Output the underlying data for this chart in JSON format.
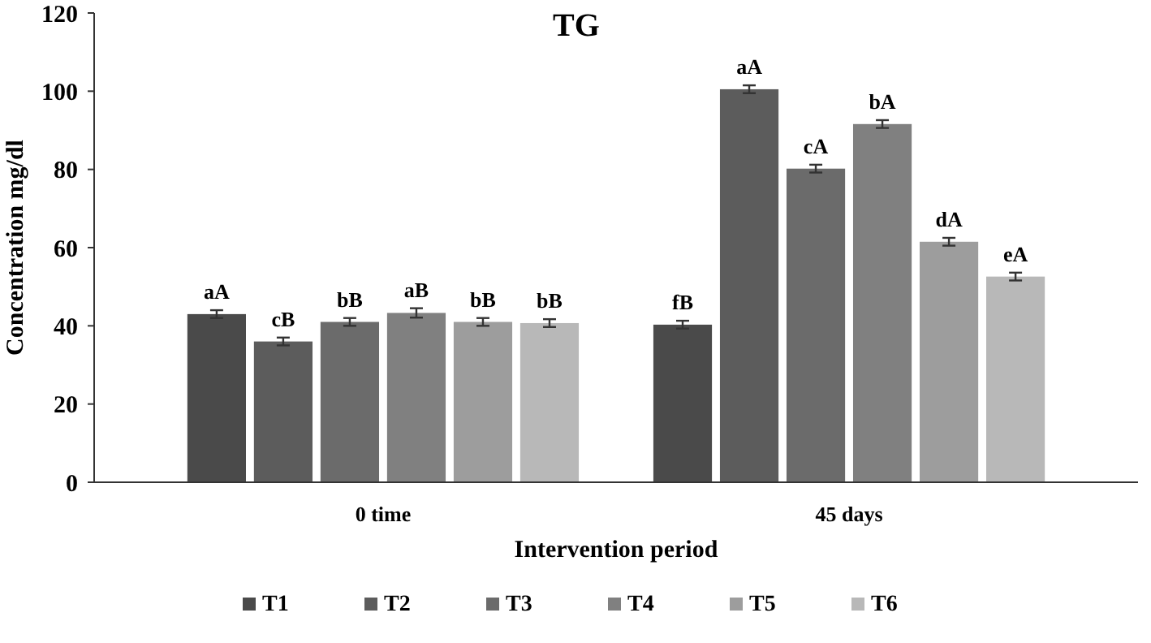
{
  "chart_data": {
    "type": "bar",
    "title": "TG",
    "xlabel": "Intervention period",
    "ylabel": "Concentration mg/dl",
    "categories": [
      "0 time",
      "45 days"
    ],
    "series": [
      {
        "name": "T1",
        "color": "#4a4a4a",
        "values": [
          43,
          40.3
        ],
        "errors": [
          1,
          1
        ],
        "value_labels": [
          "aA",
          "fB"
        ]
      },
      {
        "name": "T2",
        "color": "#5c5c5c",
        "values": [
          36,
          100.5
        ],
        "errors": [
          1,
          1
        ],
        "value_labels": [
          "cB",
          "aA"
        ]
      },
      {
        "name": "T3",
        "color": "#6b6b6b",
        "values": [
          41,
          80.2
        ],
        "errors": [
          1,
          1
        ],
        "value_labels": [
          "bB",
          "cA"
        ]
      },
      {
        "name": "T4",
        "color": "#808080",
        "values": [
          43.3,
          91.6
        ],
        "errors": [
          1.2,
          1
        ],
        "value_labels": [
          "aB",
          "bA"
        ]
      },
      {
        "name": "T5",
        "color": "#9d9d9d",
        "values": [
          41,
          61.5
        ],
        "errors": [
          1,
          1
        ],
        "value_labels": [
          "bB",
          "dA"
        ]
      },
      {
        "name": "T6",
        "color": "#b8b8b8",
        "values": [
          40.7,
          52.6
        ],
        "errors": [
          1,
          1
        ],
        "value_labels": [
          "bB",
          "eA"
        ]
      }
    ],
    "ylim": [
      0,
      120
    ],
    "yticks": [
      0,
      20,
      40,
      60,
      80,
      100,
      120
    ],
    "grid": false,
    "legend": "bottom"
  }
}
